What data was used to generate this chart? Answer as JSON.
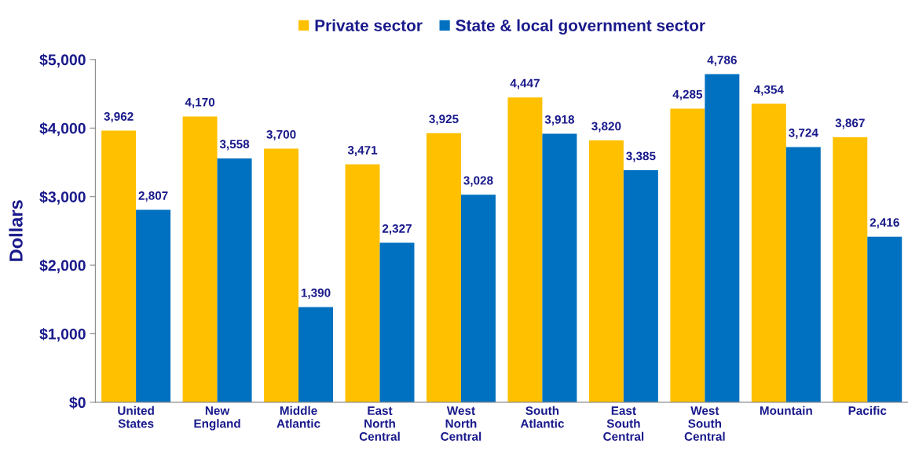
{
  "chart_data": {
    "type": "bar",
    "ylabel": "Dollars",
    "categories": [
      "United\nStates",
      "New\nEngland",
      "Middle\nAtlantic",
      "East\nNorth\nCentral",
      "West\nNorth\nCentral",
      "South\nAtlantic",
      "East\nSouth\nCentral",
      "West\nSouth\nCentral",
      "Mountain",
      "Pacific"
    ],
    "series": [
      {
        "name": "Private sector",
        "color": "#ffc000",
        "values": [
          3962,
          4170,
          3700,
          3471,
          3925,
          4447,
          3820,
          4285,
          4354,
          3867
        ],
        "value_labels": [
          "3,962",
          "4,170",
          "3,700",
          "3,471",
          "3,925",
          "4,447",
          "3,820",
          "4,285",
          "4,354",
          "3,867"
        ]
      },
      {
        "name": "State & local government sector",
        "color": "#0070c0",
        "values": [
          2807,
          3558,
          1390,
          2327,
          3028,
          3918,
          3385,
          4786,
          3724,
          2416
        ],
        "value_labels": [
          "2,807",
          "3,558",
          "1,390",
          "2,327",
          "3,028",
          "3,918",
          "3,385",
          "4,786",
          "3,724",
          "2,416"
        ]
      }
    ],
    "ylim": [
      0,
      5000
    ],
    "yticks": [
      {
        "value": 0,
        "label": "$0"
      },
      {
        "value": 1000,
        "label": "$1,000"
      },
      {
        "value": 2000,
        "label": "$2,000"
      },
      {
        "value": 3000,
        "label": "$3,000"
      },
      {
        "value": 4000,
        "label": "$4,000"
      },
      {
        "value": 5000,
        "label": "$5,000"
      }
    ],
    "legend": "top",
    "grid": false
  }
}
